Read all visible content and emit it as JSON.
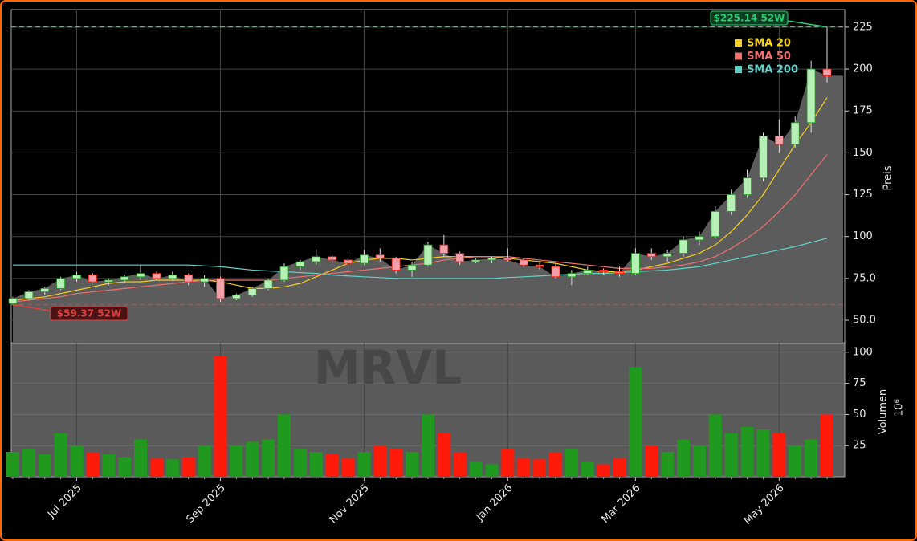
{
  "chart_data": {
    "type": "candlestick",
    "watermark": "MRVL",
    "y_label": "Preis",
    "volume_label": "Volumen",
    "volume_multiplier": "10⁶",
    "categories": [
      null,
      null,
      null,
      null,
      "Jul 2025",
      null,
      null,
      null,
      null,
      null,
      null,
      null,
      null,
      "Sep 2025",
      null,
      null,
      null,
      null,
      null,
      null,
      null,
      null,
      "Nov 2025",
      null,
      null,
      null,
      null,
      null,
      null,
      null,
      null,
      "Jan 2026",
      null,
      null,
      null,
      null,
      null,
      null,
      null,
      "Mar 2026",
      null,
      null,
      null,
      null,
      null,
      null,
      null,
      null,
      "May 2026",
      null,
      null,
      null
    ],
    "open": [
      60,
      63,
      67,
      69,
      75,
      77,
      73,
      74,
      76,
      78,
      75,
      77,
      73,
      75,
      63,
      65,
      69,
      74,
      82,
      85,
      88,
      86,
      84,
      89,
      87,
      80,
      83,
      95,
      90,
      85,
      86,
      87,
      86,
      83,
      82,
      76,
      78,
      80,
      79,
      78,
      90,
      88,
      90,
      98,
      100,
      115,
      125,
      135,
      160,
      155,
      168,
      200
    ],
    "high": [
      64,
      68,
      70,
      76,
      79,
      78,
      75,
      77,
      83,
      79,
      79,
      78,
      77,
      76,
      66,
      70,
      75,
      84,
      86,
      92,
      90,
      89,
      92,
      93,
      88,
      85,
      97,
      101,
      91,
      87,
      88,
      93,
      87,
      85,
      84,
      80,
      82,
      81,
      82,
      93,
      93,
      92,
      100,
      103,
      118,
      128,
      140,
      162,
      170,
      172,
      205,
      225.14
    ],
    "low": [
      59.37,
      62,
      65,
      68,
      73,
      72,
      71,
      72,
      74,
      74,
      74,
      71,
      70,
      61,
      62,
      64,
      68,
      73,
      80,
      83,
      84,
      80,
      83,
      85,
      78,
      76,
      82,
      88,
      83,
      84,
      84,
      85,
      82,
      80,
      75,
      71,
      77,
      77,
      76,
      77,
      86,
      85,
      88,
      95,
      99,
      113,
      123,
      133,
      150,
      153,
      162,
      192
    ],
    "close": [
      63,
      67,
      69,
      75,
      77,
      73,
      74,
      76,
      78,
      75,
      77,
      73,
      75,
      63,
      65,
      69,
      74,
      82,
      85,
      88,
      86,
      84,
      89,
      87,
      80,
      83,
      95,
      90,
      85,
      86,
      87,
      86,
      83,
      82,
      76,
      78,
      80,
      79,
      78,
      90,
      88,
      90,
      98,
      100,
      115,
      125,
      135,
      160,
      155,
      168,
      200,
      196
    ],
    "volume": [
      20,
      22,
      18,
      35,
      25,
      20,
      18,
      16,
      30,
      15,
      14,
      16,
      25,
      97,
      25,
      28,
      30,
      50,
      22,
      20,
      18,
      15,
      20,
      25,
      22,
      20,
      50,
      35,
      20,
      12,
      10,
      22,
      15,
      14,
      20,
      22,
      12,
      10,
      15,
      88,
      25,
      20,
      30,
      25,
      50,
      35,
      40,
      38,
      35,
      25,
      30,
      50
    ],
    "up_color": "#1f9a1f",
    "down_color": "#ff1a0a",
    "series": [
      {
        "name": "SMA 20",
        "color": "#f5d020",
        "values": [
          62,
          63,
          64,
          66,
          68,
          70,
          72,
          73,
          73,
          74,
          74,
          74,
          74,
          73,
          71,
          69,
          69,
          70,
          72,
          76,
          80,
          84,
          86,
          87,
          87,
          86,
          87,
          88,
          88,
          88,
          88,
          87,
          86,
          85,
          84,
          82,
          80,
          79,
          79,
          80,
          82,
          84,
          87,
          90,
          95,
          103,
          113,
          125,
          140,
          155,
          168,
          183
        ]
      },
      {
        "name": "SMA 50",
        "color": "#f07070",
        "values": [
          61,
          62,
          63,
          64,
          66,
          67,
          68,
          69,
          70,
          71,
          72,
          73,
          74,
          74,
          74,
          74,
          74,
          75,
          76,
          77,
          78,
          79,
          80,
          81,
          82,
          83,
          84,
          86,
          87,
          88,
          88,
          88,
          87,
          86,
          85,
          84,
          83,
          82,
          81,
          81,
          81,
          82,
          83,
          85,
          88,
          93,
          99,
          106,
          115,
          125,
          137,
          149
        ]
      },
      {
        "name": "SMA 200",
        "color": "#5fd3c8",
        "values": [
          83,
          83,
          83,
          83,
          83,
          83,
          83,
          83,
          83,
          83,
          83,
          83,
          82.5,
          82,
          81,
          80,
          79.5,
          79,
          78.5,
          78,
          77,
          76.5,
          76,
          75.5,
          75,
          75,
          75,
          75,
          75,
          75,
          75,
          75.5,
          76,
          76.5,
          77,
          77.5,
          78,
          78,
          78.5,
          79,
          79.5,
          80,
          81,
          82,
          84,
          86,
          88,
          90,
          92,
          94,
          96.5,
          99
        ]
      }
    ],
    "ylim": [
      36.6,
      235.5
    ],
    "yticks": [
      {
        "value": 50,
        "label": "50.0"
      },
      {
        "value": 75,
        "label": "75.0"
      },
      100,
      125,
      150,
      175,
      200,
      225
    ],
    "volume_ylim": [
      0,
      107.6
    ],
    "volume_yticks": [
      25,
      50,
      75,
      100
    ],
    "annotations": [
      {
        "text": "$225.14 52W",
        "value": 225.14,
        "color": "#2ecc71"
      },
      {
        "text": "$59.37 52W",
        "value": 59.37,
        "color": "#e04040"
      }
    ]
  }
}
